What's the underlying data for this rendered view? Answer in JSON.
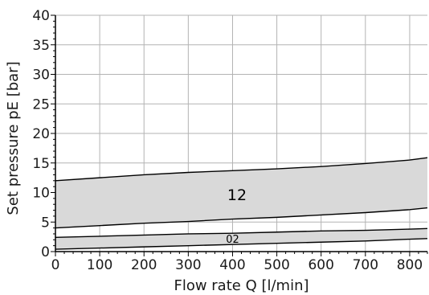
{
  "chart_data": {
    "type": "area",
    "xlabel": "Flow rate Q [l/min]",
    "ylabel": "Set pressure pE [bar]",
    "xlim": [
      0,
      840
    ],
    "ylim": [
      0,
      40
    ],
    "x_ticks": [
      "0",
      "100",
      "200",
      "300",
      "400",
      "500",
      "600",
      "700",
      "800"
    ],
    "y_ticks": [
      "0",
      "5",
      "10",
      "15",
      "20",
      "25",
      "30",
      "35",
      "40"
    ],
    "grid": true,
    "colors": {
      "band_fill": "#d9d9d9",
      "grid": "#b3b3b3",
      "line": "#000000"
    },
    "series": [
      {
        "name": "12",
        "x": [
          0,
          100,
          200,
          300,
          400,
          500,
          600,
          700,
          800,
          840
        ],
        "upper": [
          12.0,
          12.5,
          13.0,
          13.4,
          13.7,
          14.0,
          14.4,
          14.9,
          15.5,
          15.9
        ],
        "lower": [
          4.0,
          4.4,
          4.8,
          5.1,
          5.5,
          5.8,
          6.2,
          6.6,
          7.1,
          7.4
        ]
      },
      {
        "name": "02",
        "x": [
          0,
          100,
          200,
          300,
          400,
          500,
          600,
          700,
          800,
          840
        ],
        "upper": [
          2.4,
          2.6,
          2.8,
          3.0,
          3.1,
          3.3,
          3.5,
          3.6,
          3.8,
          3.9
        ],
        "lower": [
          0.4,
          0.6,
          0.8,
          1.0,
          1.2,
          1.4,
          1.6,
          1.8,
          2.1,
          2.2
        ]
      }
    ]
  }
}
